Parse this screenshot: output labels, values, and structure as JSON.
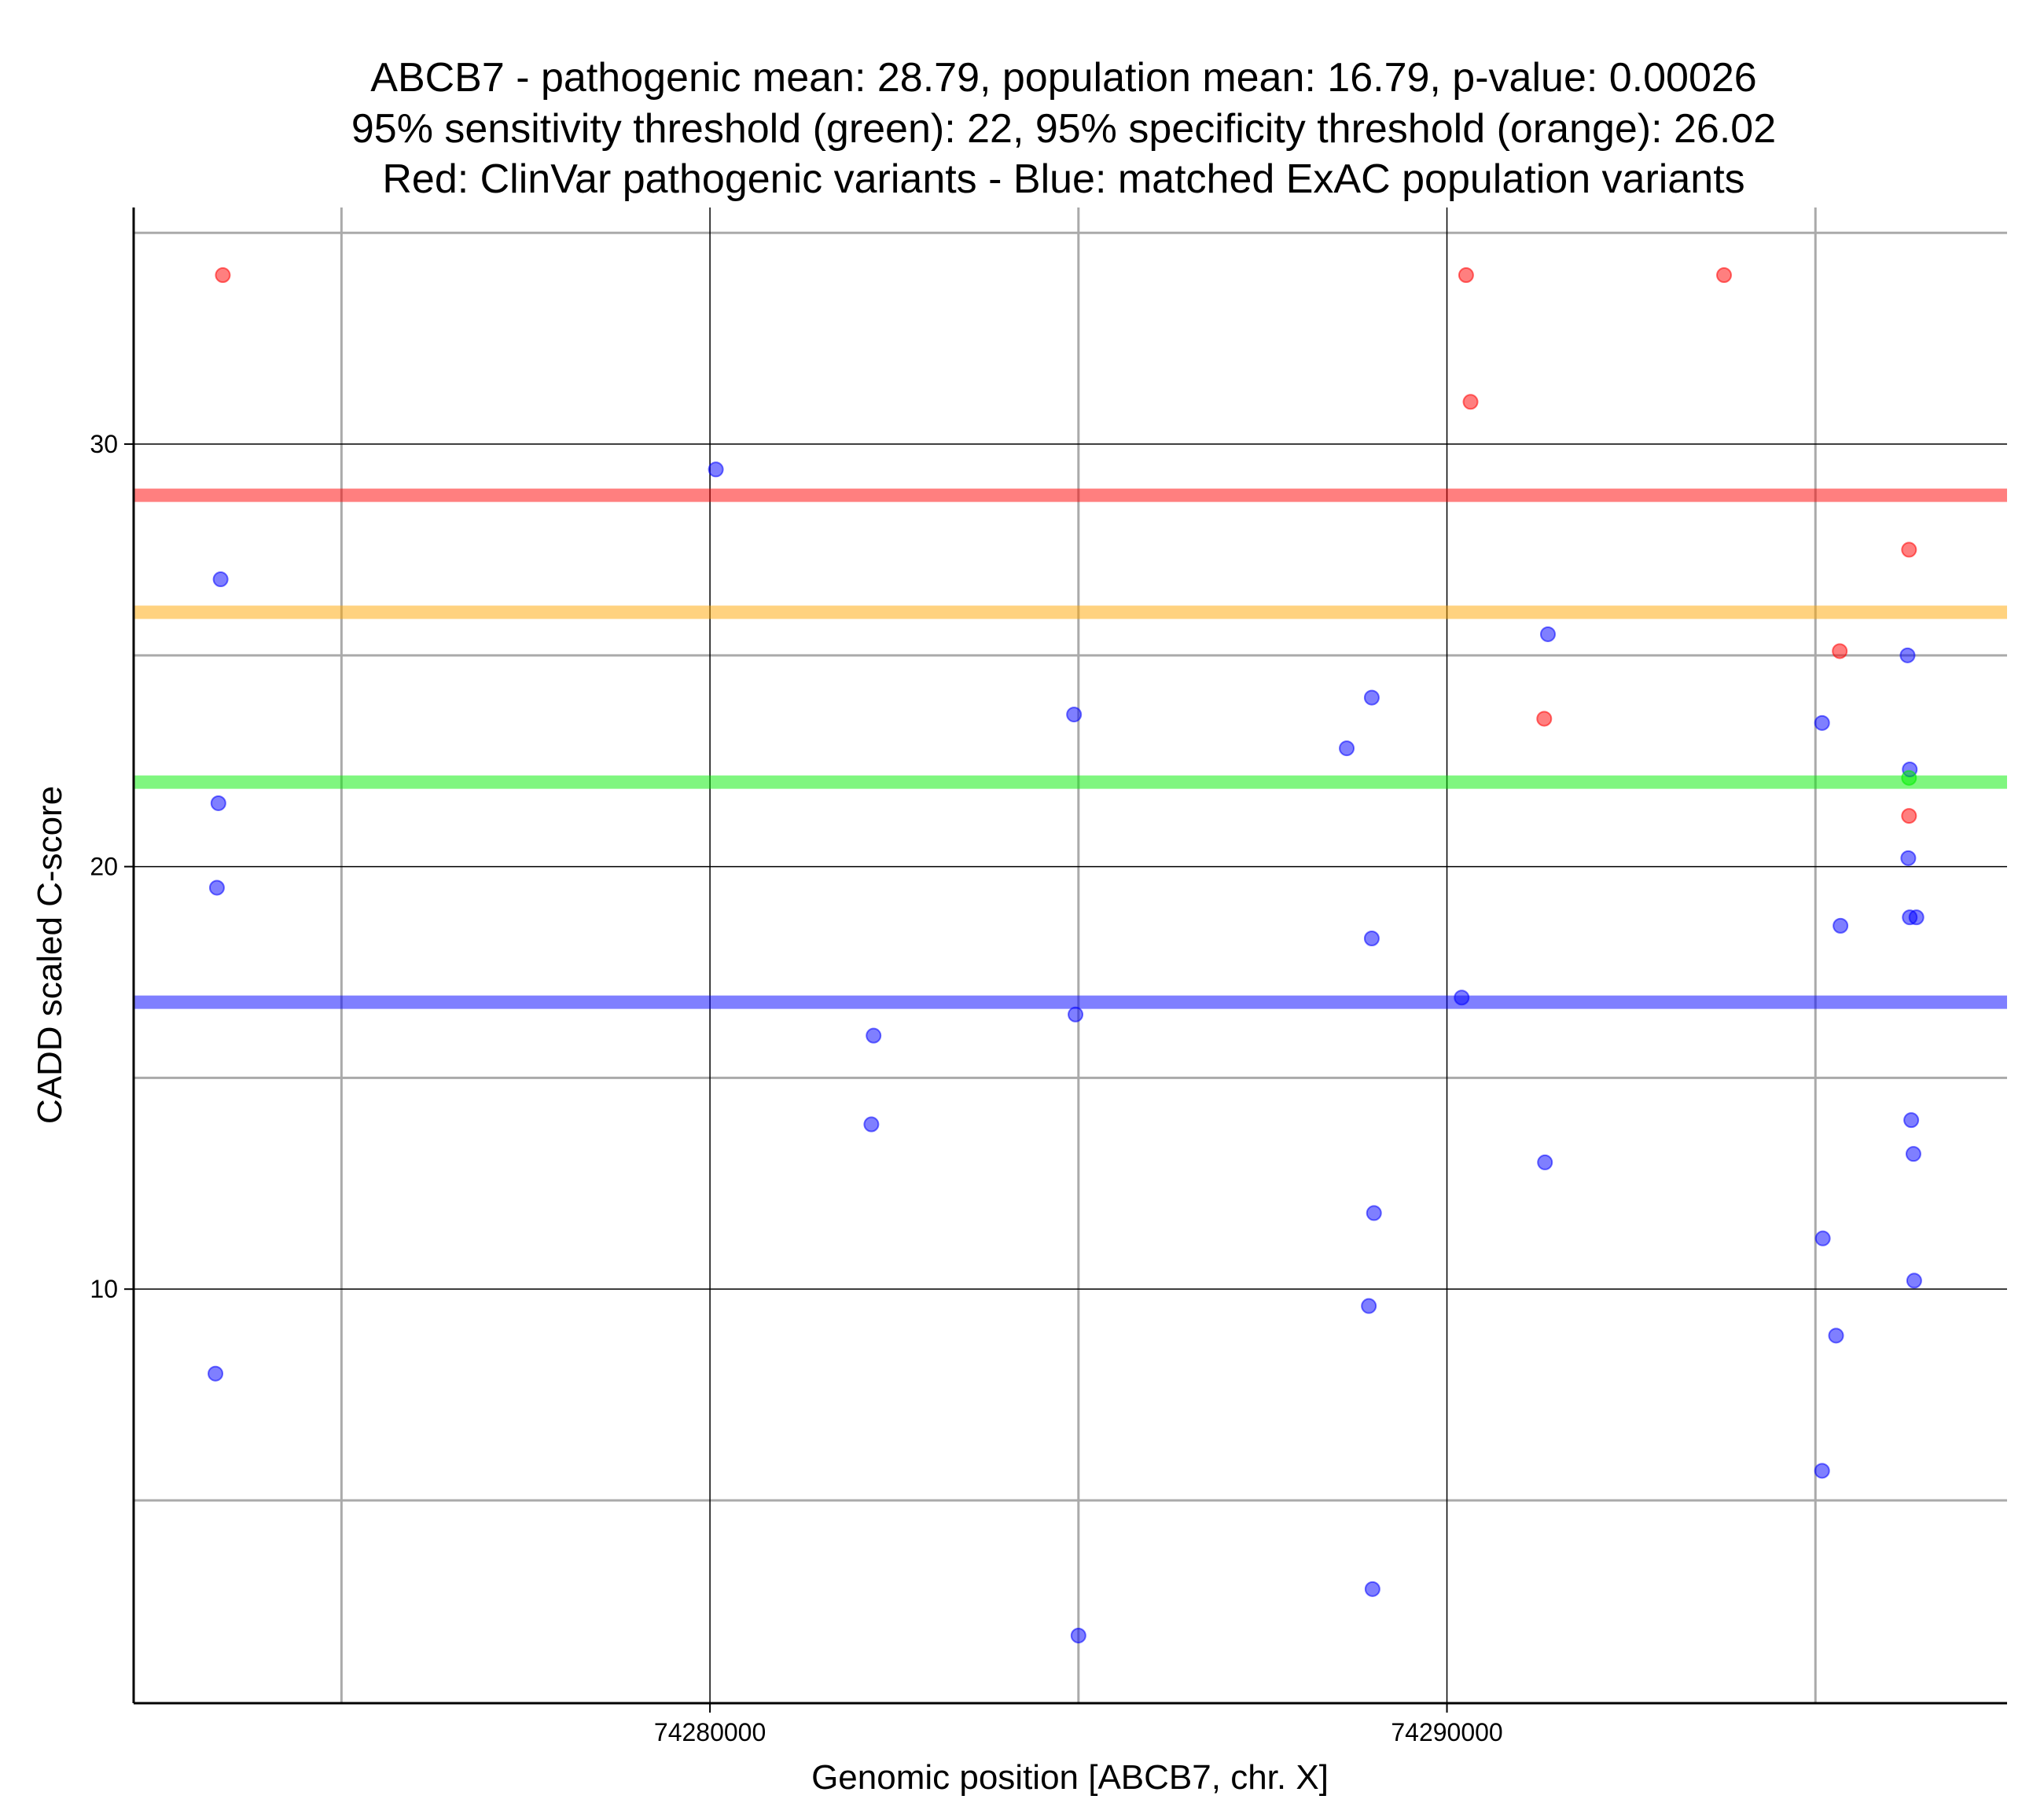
{
  "chart_data": {
    "type": "scatter",
    "title_lines": [
      "ABCB7 - pathogenic mean: 28.79, population mean: 16.79, p-value: 0.00026",
      "95% sensitivity threshold (green): 22, 95% specificity threshold (orange): 26.02",
      "Red: ClinVar pathogenic variants - Blue: matched ExAC population variants"
    ],
    "xlabel": "Genomic position [ABCB7, chr. X]",
    "ylabel": "CADD scaled C-score",
    "xlim": [
      74272180,
      74297600
    ],
    "ylim": [
      0.2,
      35.6
    ],
    "x_ticks": [
      74280000,
      74290000
    ],
    "x_minor_gridlines": [
      74275000,
      74285000,
      74295000
    ],
    "y_ticks": [
      10,
      20,
      30
    ],
    "y_minor_gridlines": [
      5,
      15,
      25,
      35
    ],
    "grid": true,
    "colors": {
      "pathogenic": "#ff0000",
      "population": "#0000ff",
      "sensitivity": "#00ee00",
      "specificity": "#ffa500",
      "major_grid": "#000000",
      "minor_grid": "#aaaaaa"
    },
    "hlines": [
      {
        "name": "pathogenic mean",
        "y": 28.79,
        "color": "#ff0000"
      },
      {
        "name": "specificity threshold",
        "y": 26.02,
        "color": "#ffa500"
      },
      {
        "name": "sensitivity threshold",
        "y": 22.0,
        "color": "#00ee00"
      },
      {
        "name": "population mean",
        "y": 16.79,
        "color": "#0000ff"
      }
    ],
    "series": [
      {
        "color": "#ff0000",
        "points": [
          [
            74273390,
            34.0
          ],
          [
            74290260,
            34.0
          ],
          [
            74293760,
            34.0
          ],
          [
            74290320,
            31.0
          ],
          [
            74296270,
            27.5
          ],
          [
            74295330,
            25.1
          ],
          [
            74291320,
            23.5
          ],
          [
            74296270,
            21.2
          ]
        ]
      },
      {
        "color": "#0000ff",
        "points": [
          [
            74280080,
            29.4
          ],
          [
            74273360,
            26.8
          ],
          [
            74291370,
            25.5
          ],
          [
            74296250,
            25.0
          ],
          [
            74288980,
            24.0
          ],
          [
            74284940,
            23.6
          ],
          [
            74295090,
            23.4
          ],
          [
            74288640,
            22.8
          ],
          [
            74296280,
            22.3
          ],
          [
            74273330,
            21.5
          ],
          [
            74296260,
            20.2
          ],
          [
            74273310,
            19.5
          ],
          [
            74296280,
            18.8
          ],
          [
            74296370,
            18.8
          ],
          [
            74295340,
            18.6
          ],
          [
            74288980,
            18.3
          ],
          [
            74290200,
            16.9
          ],
          [
            74284960,
            16.5
          ],
          [
            74282220,
            16.0
          ],
          [
            74296300,
            14.0
          ],
          [
            74282190,
            13.9
          ],
          [
            74296330,
            13.2
          ],
          [
            74291330,
            13.0
          ],
          [
            74289010,
            11.8
          ],
          [
            74295100,
            11.2
          ],
          [
            74296340,
            10.2
          ],
          [
            74288940,
            9.6
          ],
          [
            74295280,
            8.9
          ],
          [
            74273290,
            8.0
          ],
          [
            74295090,
            5.7
          ],
          [
            74288990,
            2.9
          ],
          [
            74285000,
            1.8
          ]
        ]
      },
      {
        "color": "#00ee00",
        "points": [
          [
            74296270,
            22.1
          ]
        ]
      }
    ]
  }
}
